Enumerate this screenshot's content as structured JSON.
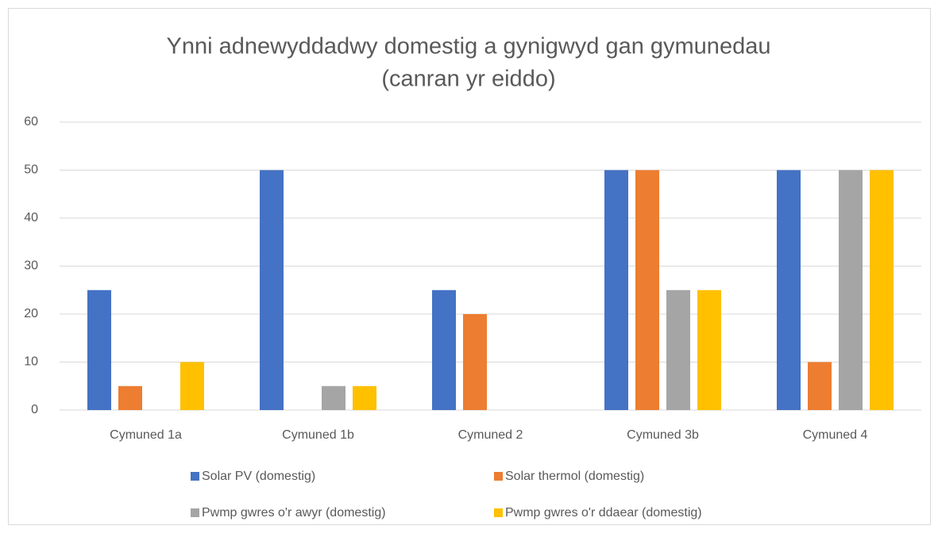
{
  "chart_data": {
    "type": "bar",
    "title": [
      "Ynni adnewyddadwy domestig a gynigwyd gan gymunedau",
      "(canran yr eiddo)"
    ],
    "categories": [
      "Cymuned 1a",
      "Cymuned 1b",
      "Cymuned 2",
      "Cymuned 3b",
      "Cymuned 4"
    ],
    "series": [
      {
        "name": "Solar PV (domestig)",
        "color": "#4472c4",
        "values": [
          25,
          50,
          25,
          50,
          50
        ]
      },
      {
        "name": "Solar thermol (domestig)",
        "color": "#ed7d31",
        "values": [
          5,
          0,
          20,
          50,
          10
        ]
      },
      {
        "name": "Pwmp gwres o'r awyr (domestig)",
        "color": "#a5a5a5",
        "values": [
          0,
          5,
          0,
          25,
          50
        ]
      },
      {
        "name": "Pwmp gwres o'r ddaear (domestig)",
        "color": "#ffc000",
        "values": [
          10,
          5,
          0,
          25,
          50
        ]
      }
    ],
    "ylim": [
      0,
      60
    ],
    "yticks": [
      0,
      10,
      20,
      30,
      40,
      50,
      60
    ],
    "grid": true,
    "legend": "bottom"
  }
}
